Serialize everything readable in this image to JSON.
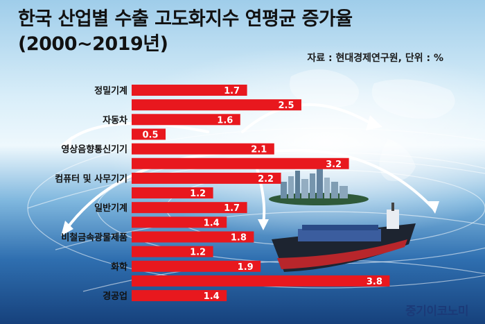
{
  "header": {
    "title_line1": "한국 산업별 수출 고도화지수 연평균 증가율",
    "title_line2": "(2000~2019년)",
    "source": "자료 : 현대경제연구원, 단위 : %"
  },
  "brand": {
    "name": "중기이코노미"
  },
  "colors": {
    "bar": "#e8181e",
    "value_text": "#ffffff",
    "brand": "#1b3a78"
  },
  "chart_data": {
    "type": "bar",
    "orientation": "horizontal",
    "categories": [
      "정밀기계",
      "자동차",
      "영상음향통신기기",
      "컴퓨터 및 사무기기",
      "일반기계",
      "비철금속광물제품",
      "화학",
      "경공업"
    ],
    "bars": [
      {
        "category": "정밀기계",
        "value": 1.7
      },
      {
        "category": "",
        "value": 2.5
      },
      {
        "category": "자동차",
        "value": 1.6
      },
      {
        "category": "",
        "value": 0.5
      },
      {
        "category": "영상음향통신기기",
        "value": 2.1
      },
      {
        "category": "",
        "value": 3.2
      },
      {
        "category": "컴퓨터 및 사무기기",
        "value": 2.2
      },
      {
        "category": "",
        "value": 1.2
      },
      {
        "category": "일반기계",
        "value": 1.7
      },
      {
        "category": "",
        "value": 1.4
      },
      {
        "category": "비철금속광물제품",
        "value": 1.8
      },
      {
        "category": "",
        "value": 1.2
      },
      {
        "category": "화학",
        "value": 1.9
      },
      {
        "category": "",
        "value": 3.8
      },
      {
        "category": "경공업",
        "value": 1.4
      }
    ],
    "xlim": [
      0,
      3.8
    ],
    "unit": "%",
    "grid": false,
    "legend": "none"
  }
}
